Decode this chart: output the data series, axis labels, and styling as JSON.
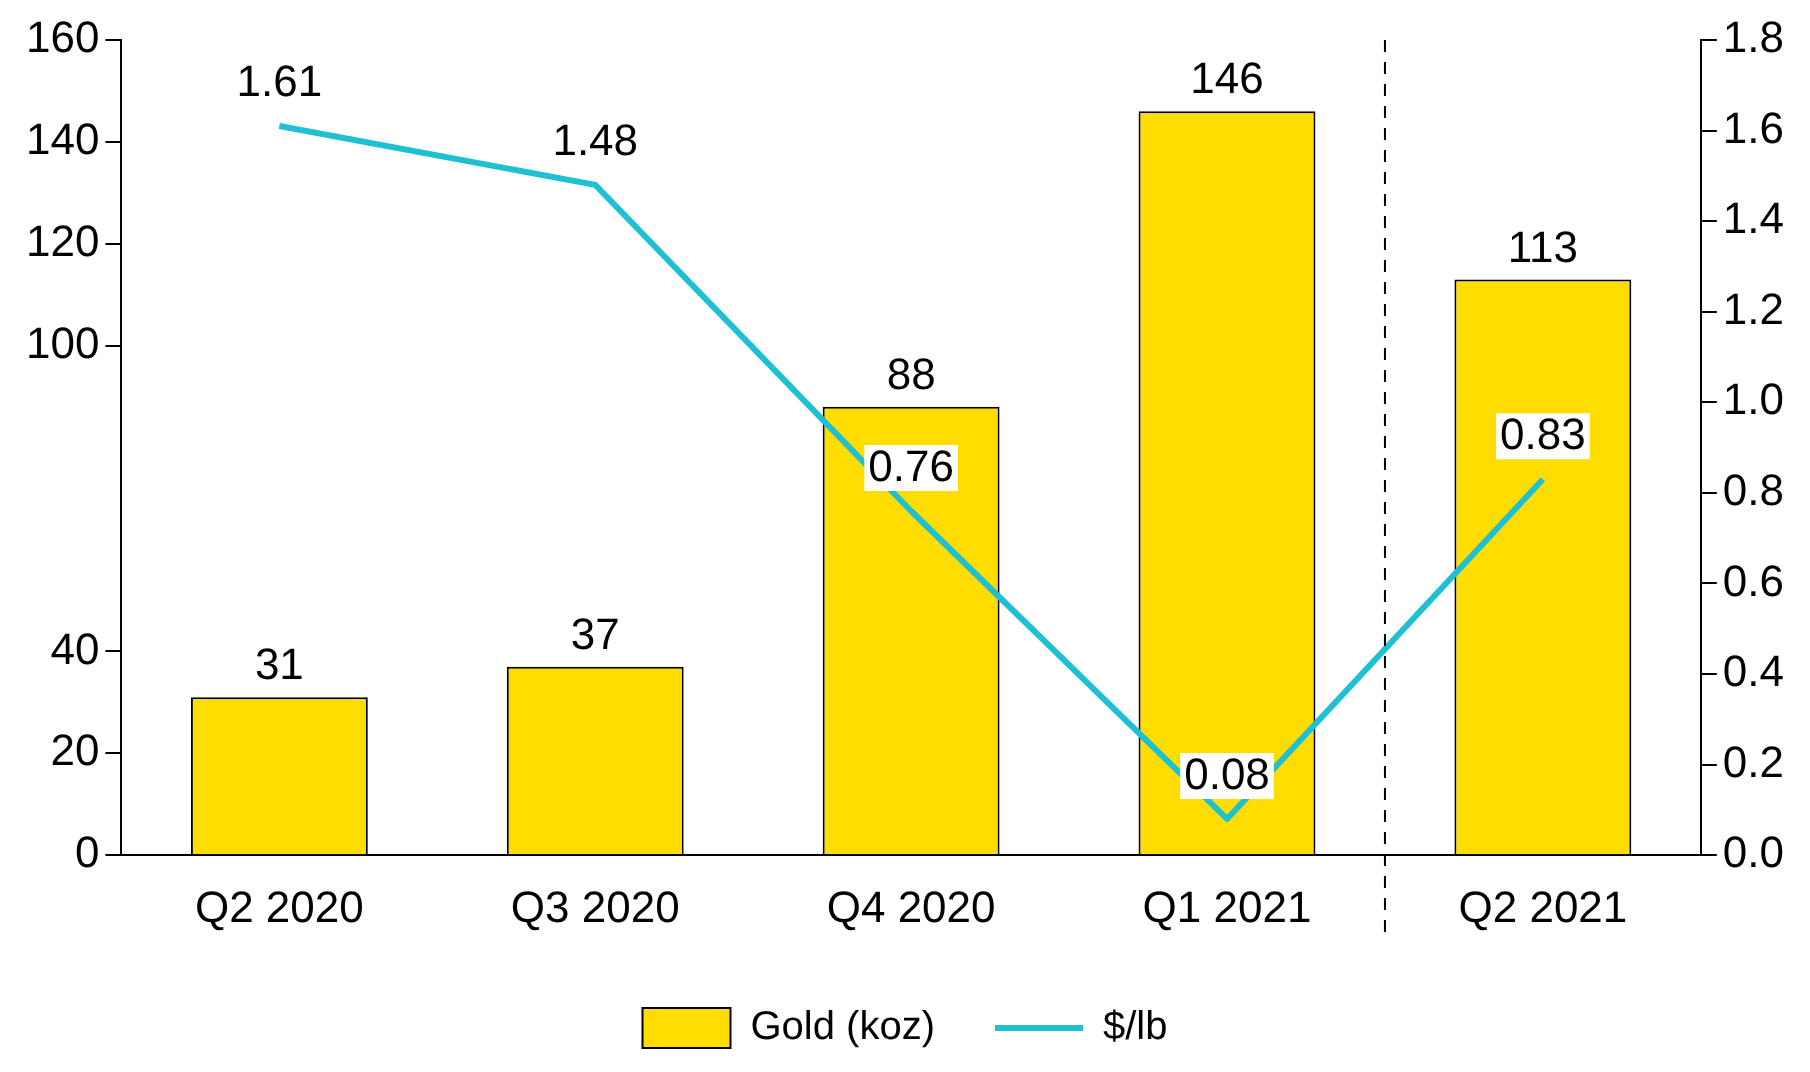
{
  "chart_data": {
    "type": "bar",
    "categories": [
      "Q2 2020",
      "Q3 2020",
      "Q4 2020",
      "Q1 2021",
      "Q2 2021"
    ],
    "series": [
      {
        "name": "Gold (koz)",
        "color": "#ffdd00",
        "values": [
          31,
          37,
          88,
          146,
          113
        ]
      },
      {
        "name": "$/lb",
        "type": "line",
        "axis": "y2",
        "color": "#1ec0d2",
        "values": [
          1.61,
          1.48,
          0.76,
          0.08,
          0.83
        ]
      }
    ],
    "ylim": [
      0,
      160
    ],
    "yticks": [
      0,
      20,
      40,
      100,
      120,
      140,
      160
    ],
    "y2lim": [
      0,
      1.8
    ],
    "y2ticks": [
      {
        "value": 0,
        "label": "0.0"
      },
      0.2,
      0.4,
      0.6,
      0.8,
      {
        "value": 1,
        "label": "1.0"
      },
      1.2,
      1.4,
      1.6,
      1.8
    ],
    "data_labels": true,
    "grid": false,
    "legend": "bottom",
    "marker": "none",
    "line_style": "solid"
  }
}
